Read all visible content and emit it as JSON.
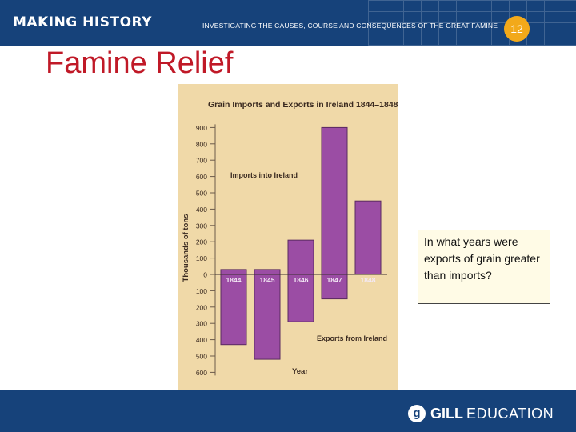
{
  "header": {
    "brand": "MAKING HISTORY",
    "subtitle": "INVESTIGATING THE CAUSES, COURSE AND CONSEQUENCES OF THE GREAT FAMINE",
    "slide_number": "12"
  },
  "slide": {
    "title": "Famine Relief",
    "question": "In what years were exports of grain greater than imports?"
  },
  "footer": {
    "logo_mark": "g",
    "logo_gill": "GILL",
    "logo_education": "EDUCATION"
  },
  "colors": {
    "header_bg": "#16427a",
    "title_red": "#c01927",
    "badge": "#f2a91a",
    "bar": "#9b4da4",
    "chart_bg": "#f0d9a8"
  },
  "chart_data": {
    "type": "bar",
    "title": "Grain Imports and Exports in Ireland 1844–1848",
    "xlabel": "Year",
    "ylabel": "Thousands of tons",
    "categories": [
      "1844",
      "1845",
      "1846",
      "1847",
      "1848"
    ],
    "series": [
      {
        "name": "Imports into Ireland",
        "values": [
          30,
          30,
          210,
          900,
          450
        ]
      },
      {
        "name": "Exports from Ireland",
        "values": [
          430,
          520,
          290,
          150,
          0
        ]
      }
    ],
    "ylim_imports": [
      0,
      900
    ],
    "ylim_exports": [
      0,
      600
    ],
    "yticks_imports": [
      "900",
      "800",
      "700",
      "600",
      "500",
      "400",
      "300",
      "200",
      "100",
      "0"
    ],
    "yticks_exports": [
      "100",
      "200",
      "300",
      "400",
      "500",
      "600"
    ],
    "grid": false
  }
}
